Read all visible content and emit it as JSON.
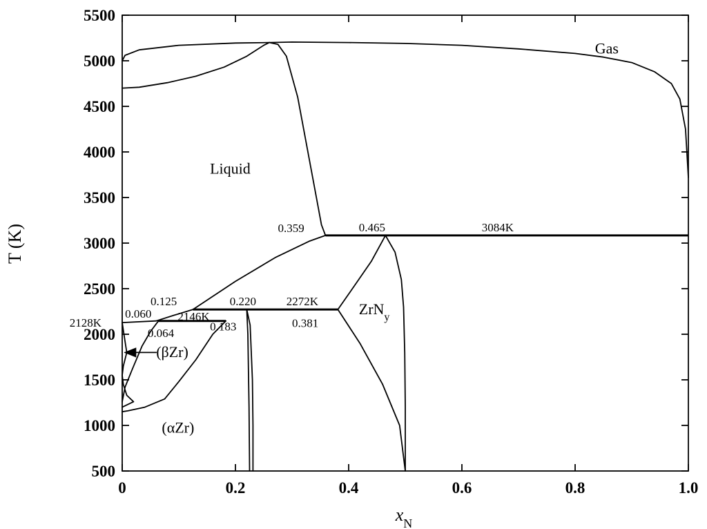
{
  "chart_data": {
    "type": "line",
    "title": "",
    "xlabel": "x",
    "xlabel_sub": "N",
    "ylabel": "T (K)",
    "xlim": [
      0,
      1.0
    ],
    "ylim": [
      500,
      5500
    ],
    "grid": false,
    "x_ticks": [
      {
        "value": 0,
        "label": "0"
      },
      {
        "value": 0.2,
        "label": "0.2"
      },
      {
        "value": 0.4,
        "label": "0.4"
      },
      {
        "value": 0.6,
        "label": "0.6"
      },
      {
        "value": 0.8,
        "label": "0.8"
      },
      {
        "value": 1.0,
        "label": "1.0"
      }
    ],
    "y_ticks": [
      {
        "value": 500,
        "label": "500"
      },
      {
        "value": 1000,
        "label": "1000"
      },
      {
        "value": 1500,
        "label": "1500"
      },
      {
        "value": 2000,
        "label": "2000"
      },
      {
        "value": 2500,
        "label": "2500"
      },
      {
        "value": 3000,
        "label": "3000"
      },
      {
        "value": 3500,
        "label": "3500"
      },
      {
        "value": 4000,
        "label": "4000"
      },
      {
        "value": 4500,
        "label": "4500"
      },
      {
        "value": 5000,
        "label": "5000"
      },
      {
        "value": 5500,
        "label": "5500"
      }
    ],
    "curves": [
      {
        "kind": "gas-upper-boundary",
        "points": [
          [
            0,
            5000
          ],
          [
            0.005,
            5060
          ],
          [
            0.03,
            5120
          ],
          [
            0.1,
            5170
          ],
          [
            0.2,
            5195
          ],
          [
            0.26,
            5200
          ],
          [
            0.3,
            5205
          ],
          [
            0.4,
            5200
          ],
          [
            0.5,
            5190
          ],
          [
            0.6,
            5170
          ],
          [
            0.7,
            5130
          ],
          [
            0.8,
            5080
          ],
          [
            0.85,
            5040
          ],
          [
            0.9,
            4980
          ],
          [
            0.94,
            4880
          ],
          [
            0.97,
            4750
          ],
          [
            0.985,
            4580
          ],
          [
            0.995,
            4250
          ],
          [
            1.0,
            3720
          ]
        ]
      },
      {
        "kind": "gas-lower-boundary",
        "points": [
          [
            0,
            4700
          ],
          [
            0.03,
            4710
          ],
          [
            0.08,
            4760
          ],
          [
            0.13,
            4830
          ],
          [
            0.18,
            4930
          ],
          [
            0.22,
            5050
          ],
          [
            0.25,
            5170
          ],
          [
            0.26,
            5200
          ]
        ]
      },
      {
        "kind": "liquidus-ZrNy",
        "points": [
          [
            0.26,
            5200
          ],
          [
            0.275,
            5180
          ],
          [
            0.29,
            5050
          ],
          [
            0.31,
            4600
          ],
          [
            0.325,
            4100
          ],
          [
            0.34,
            3600
          ],
          [
            0.352,
            3200
          ],
          [
            0.359,
            3084
          ]
        ]
      },
      {
        "kind": "liquidus-betaZr",
        "points": [
          [
            0.125,
            2272
          ],
          [
            0.2,
            2580
          ],
          [
            0.27,
            2840
          ],
          [
            0.33,
            3020
          ],
          [
            0.359,
            3084
          ]
        ]
      },
      {
        "kind": "liquidus-low",
        "points": [
          [
            0.06,
            2146
          ],
          [
            0.09,
            2205
          ],
          [
            0.125,
            2272
          ]
        ]
      },
      {
        "kind": "liquid-left-edge",
        "points": [
          [
            0,
            2128
          ],
          [
            0.06,
            2146
          ]
        ]
      },
      {
        "kind": "betaZr-solvus",
        "points": [
          [
            0,
            2128
          ],
          [
            0.003,
            2000
          ],
          [
            0.008,
            1800
          ],
          [
            0.002,
            1650
          ],
          [
            0,
            1550
          ],
          [
            0.002,
            1450
          ],
          [
            0.008,
            1330
          ],
          [
            0.02,
            1260
          ],
          [
            0.0,
            1200
          ]
        ]
      },
      {
        "kind": "betaZr-alphaZr-left",
        "points": [
          [
            0.064,
            2146
          ],
          [
            0.05,
            2030
          ],
          [
            0.035,
            1870
          ],
          [
            0.018,
            1620
          ],
          [
            0.005,
            1420
          ],
          [
            0,
            1260
          ]
        ]
      },
      {
        "kind": "betaZr-alphaZr-right",
        "points": [
          [
            0.183,
            2146
          ],
          [
            0.16,
            2000
          ],
          [
            0.13,
            1720
          ],
          [
            0.1,
            1480
          ],
          [
            0.075,
            1290
          ],
          [
            0.04,
            1200
          ],
          [
            0.01,
            1160
          ],
          [
            0,
            1150
          ]
        ]
      },
      {
        "kind": "alphaZr-solvus-outer",
        "points": [
          [
            0.22,
            2272
          ],
          [
            0.226,
            2100
          ],
          [
            0.23,
            1500
          ],
          [
            0.231,
            1000
          ],
          [
            0.231,
            500
          ]
        ]
      },
      {
        "kind": "alphaZr-solvus-inner",
        "points": [
          [
            0.22,
            2272
          ],
          [
            0.222,
            2000
          ],
          [
            0.224,
            1200
          ],
          [
            0.225,
            500
          ]
        ]
      },
      {
        "kind": "ZrNy-left",
        "points": [
          [
            0.381,
            2272
          ],
          [
            0.41,
            2530
          ],
          [
            0.44,
            2800
          ],
          [
            0.465,
            3084
          ]
        ]
      },
      {
        "kind": "ZrNy-right",
        "points": [
          [
            0.465,
            3084
          ],
          [
            0.482,
            2900
          ],
          [
            0.493,
            2600
          ],
          [
            0.497,
            2300
          ],
          [
            0.499,
            1800
          ],
          [
            0.5,
            1200
          ],
          [
            0.5,
            500
          ]
        ]
      },
      {
        "kind": "ZrNy-lower-left",
        "points": [
          [
            0.381,
            2272
          ],
          [
            0.42,
            1900
          ],
          [
            0.46,
            1450
          ],
          [
            0.49,
            1000
          ],
          [
            0.5,
            500
          ]
        ]
      }
    ],
    "isotherms": [
      {
        "T": 3084,
        "x1": 0.359,
        "x2": 1.0
      },
      {
        "T": 2272,
        "x1": 0.125,
        "x2": 0.381
      },
      {
        "T": 2146,
        "x1": 0.064,
        "x2": 0.183
      }
    ],
    "annotations": [
      {
        "text": "Gas",
        "x": 0.835,
        "y": 5080,
        "style": "region"
      },
      {
        "text": "Liquid",
        "x": 0.155,
        "y": 3760,
        "style": "region"
      },
      {
        "text": "(αZr)",
        "x": 0.07,
        "y": 920,
        "style": "region"
      },
      {
        "text": "(βZr)",
        "x": 0.06,
        "y": 1750,
        "style": "region"
      },
      {
        "text": "0.359",
        "x": 0.275,
        "y": 3120,
        "style": "anno"
      },
      {
        "text": "0.465",
        "x": 0.418,
        "y": 3130,
        "style": "anno"
      },
      {
        "text": "3084K",
        "x": 0.635,
        "y": 3130,
        "style": "anno"
      },
      {
        "text": "0.125",
        "x": 0.05,
        "y": 2320,
        "style": "anno"
      },
      {
        "text": "0.220",
        "x": 0.19,
        "y": 2320,
        "style": "anno"
      },
      {
        "text": "2272K",
        "x": 0.29,
        "y": 2320,
        "style": "anno"
      },
      {
        "text": "0.060",
        "x": 0.005,
        "y": 2180,
        "style": "anno"
      },
      {
        "text": "2146K",
        "x": 0.098,
        "y": 2150,
        "style": "anno"
      },
      {
        "text": "2128K",
        "x": -0.093,
        "y": 2085,
        "style": "anno"
      },
      {
        "text": "0.183",
        "x": 0.155,
        "y": 2040,
        "style": "anno"
      },
      {
        "text": "0.064",
        "x": 0.045,
        "y": 1970,
        "style": "anno"
      },
      {
        "text": "0.381",
        "x": 0.3,
        "y": 2080,
        "style": "anno"
      }
    ],
    "zrny_label": {
      "main": "ZrN",
      "sub": "y",
      "x": 0.418,
      "y": 2220
    }
  }
}
